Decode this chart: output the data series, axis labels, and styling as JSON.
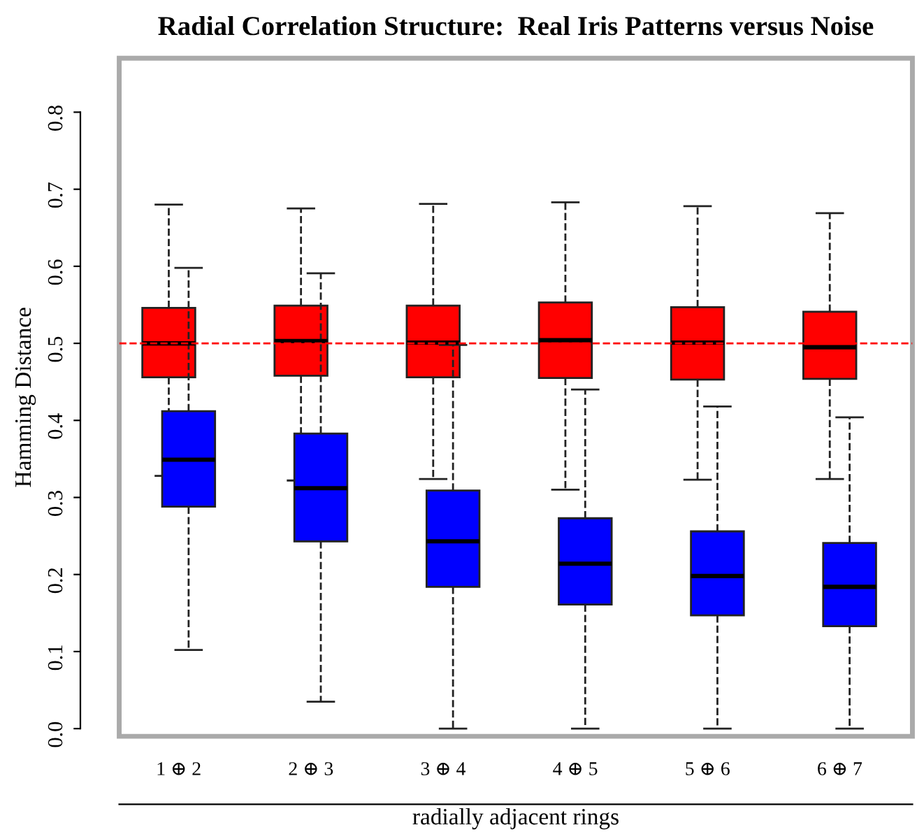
{
  "chart_data": {
    "type": "box",
    "title": "Radial Correlation Structure:  Real Iris Patterns versus Noise",
    "xlabel": "radially adjacent rings",
    "ylabel": "Hamming Distance",
    "categories": [
      "1 ⊕ 2",
      "2 ⊕ 3",
      "3 ⊕ 4",
      "4 ⊕ 5",
      "5 ⊕ 6",
      "6 ⊕ 7"
    ],
    "ylim": [
      -0.01,
      0.87
    ],
    "yticks": [
      {
        "value": 0,
        "label": "0.0"
      },
      0.1,
      0.2,
      0.3,
      0.4,
      0.5,
      0.6,
      0.7,
      0.8
    ],
    "ref_lines": [
      {
        "axis": "y",
        "value": 0.5,
        "label": null,
        "color": "#ff0000",
        "line_style": "dashed"
      }
    ],
    "grid": false,
    "legend": false,
    "series": [
      {
        "color": "#ff0000",
        "boxes": [
          {
            "low": 0.328,
            "q1": 0.456,
            "median": 0.5,
            "q3": 0.546,
            "high": 0.68
          },
          {
            "low": 0.322,
            "q1": 0.458,
            "median": 0.503,
            "q3": 0.549,
            "high": 0.675
          },
          {
            "low": 0.324,
            "q1": 0.456,
            "median": 0.501,
            "q3": 0.549,
            "high": 0.681
          },
          {
            "low": 0.31,
            "q1": 0.455,
            "median": 0.504,
            "q3": 0.553,
            "high": 0.683
          },
          {
            "low": 0.323,
            "q1": 0.453,
            "median": 0.501,
            "q3": 0.547,
            "high": 0.678
          },
          {
            "low": 0.324,
            "q1": 0.454,
            "median": 0.495,
            "q3": 0.541,
            "high": 0.669
          }
        ]
      },
      {
        "color": "#0000ff",
        "boxes": [
          {
            "low": 0.102,
            "q1": 0.288,
            "median": 0.349,
            "q3": 0.412,
            "high": 0.598
          },
          {
            "low": 0.035,
            "q1": 0.243,
            "median": 0.312,
            "q3": 0.383,
            "high": 0.591
          },
          {
            "low": 0.0,
            "q1": 0.184,
            "median": 0.243,
            "q3": 0.309,
            "high": 0.498
          },
          {
            "low": 0.0,
            "q1": 0.161,
            "median": 0.214,
            "q3": 0.273,
            "high": 0.44
          },
          {
            "low": 0.0,
            "q1": 0.147,
            "median": 0.198,
            "q3": 0.256,
            "high": 0.418
          },
          {
            "low": 0.0,
            "q1": 0.133,
            "median": 0.184,
            "q3": 0.241,
            "high": 0.404
          }
        ]
      }
    ]
  }
}
